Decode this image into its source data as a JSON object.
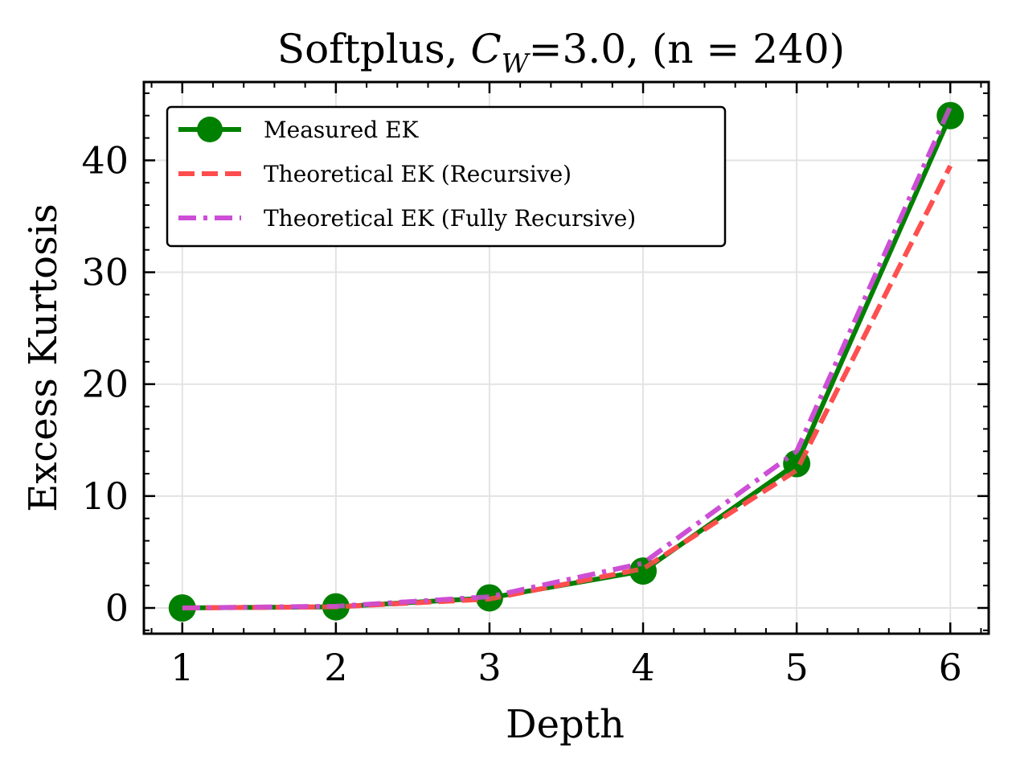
{
  "chart_data": {
    "type": "line",
    "title_prefix": "Softplus, ",
    "title_var": "C",
    "title_sub": "W",
    "title_suffix": "=3.0, (n = 240)",
    "xlabel": "Depth",
    "ylabel": "Excess Kurtosis",
    "x": [
      1,
      2,
      3,
      4,
      5,
      6
    ],
    "xticks": [
      1,
      2,
      3,
      4,
      5,
      6
    ],
    "yticks": [
      0,
      10,
      20,
      30,
      40
    ],
    "xlim": [
      0.75,
      6.25
    ],
    "ylim": [
      -2.3,
      47.0
    ],
    "grid": true,
    "legend_position": "upper-left",
    "series": [
      {
        "name": "Measured EK",
        "values": [
          0.0,
          0.1,
          0.9,
          3.3,
          12.9,
          44.0
        ],
        "color": "#008000",
        "style": "solid-marker"
      },
      {
        "name": "Theoretical EK (Recursive)",
        "values": [
          0.0,
          0.1,
          0.8,
          3.5,
          12.3,
          39.5
        ],
        "color": "#ff4d4d",
        "style": "dashed"
      },
      {
        "name": "Theoretical EK (Fully Recursive)",
        "values": [
          0.0,
          0.15,
          1.0,
          4.0,
          14.0,
          44.8
        ],
        "color": "#cc4dd6",
        "style": "dashdot"
      }
    ]
  }
}
